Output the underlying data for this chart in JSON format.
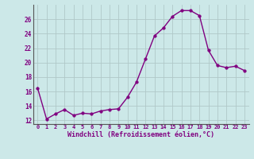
{
  "x": [
    0,
    1,
    2,
    3,
    4,
    5,
    6,
    7,
    8,
    9,
    10,
    11,
    12,
    13,
    14,
    15,
    16,
    17,
    18,
    19,
    20,
    21,
    22,
    23
  ],
  "y": [
    16.5,
    12.2,
    12.9,
    13.5,
    12.7,
    13.0,
    12.9,
    13.3,
    13.5,
    13.6,
    15.2,
    17.3,
    20.5,
    23.7,
    24.8,
    26.4,
    27.2,
    27.2,
    26.5,
    21.7,
    19.6,
    19.3,
    19.5,
    18.9
  ],
  "xlabel": "Windchill (Refroidissement éolien,°C)",
  "xlim_min": -0.5,
  "xlim_max": 23.5,
  "ylim_min": 11.5,
  "ylim_max": 28.0,
  "yticks": [
    12,
    14,
    16,
    18,
    20,
    22,
    24,
    26
  ],
  "xticks": [
    0,
    1,
    2,
    3,
    4,
    5,
    6,
    7,
    8,
    9,
    10,
    11,
    12,
    13,
    14,
    15,
    16,
    17,
    18,
    19,
    20,
    21,
    22,
    23
  ],
  "line_color": "#800080",
  "marker_size": 2.5,
  "bg_color": "#cce8e8",
  "grid_color": "#b0c8c8",
  "font_color": "#800080",
  "tick_fontsize": 5.0,
  "xlabel_fontsize": 6.0,
  "linewidth": 1.0
}
